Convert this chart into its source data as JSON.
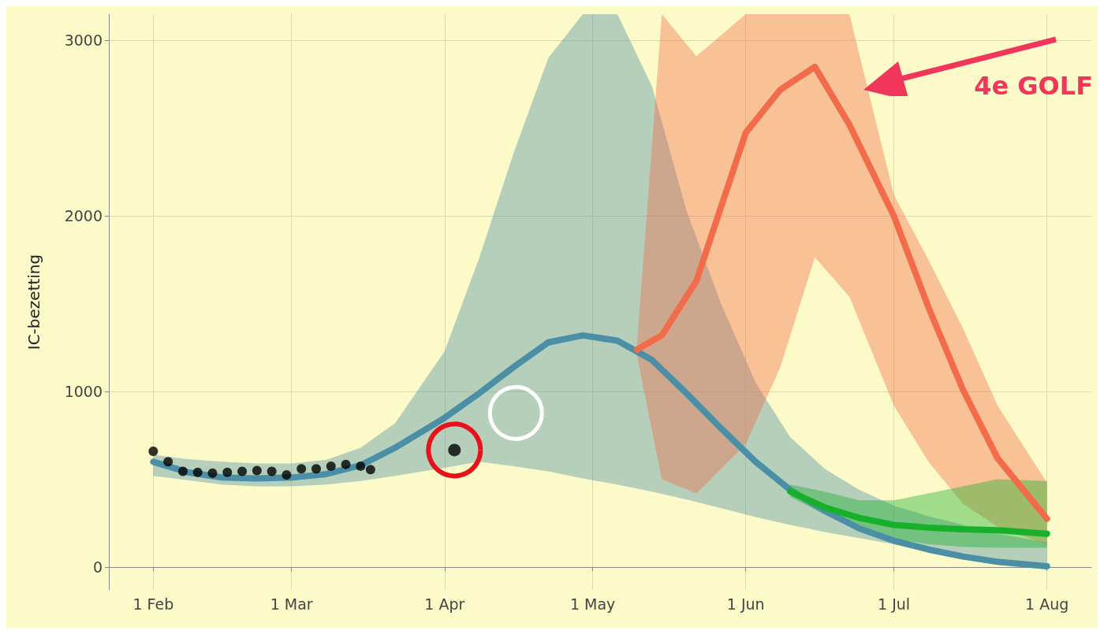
{
  "chart_data": {
    "type": "line",
    "ylabel": "IC-bezetting",
    "xlim": [
      "--01-23",
      "--08-10"
    ],
    "ylim": [
      -130,
      3150
    ],
    "xticks": [
      {
        "value": "--02-01",
        "label": "1 Feb"
      },
      {
        "value": "--03-01",
        "label": "1 Mar"
      },
      {
        "value": "--04-01",
        "label": "1 Apr"
      },
      {
        "value": "--05-01",
        "label": "1 May"
      },
      {
        "value": "--06-01",
        "label": "1 Jun"
      },
      {
        "value": "--07-01",
        "label": "1 Jul"
      },
      {
        "value": "--08-01",
        "label": "1 Aug"
      }
    ],
    "yticks": [
      0,
      1000,
      2000,
      3000
    ],
    "grid": true,
    "series": [
      {
        "color": "#4b8fa6",
        "x": [
          "--02-01",
          "--02-08",
          "--02-15",
          "--02-22",
          "--03-01",
          "--03-08",
          "--03-15",
          "--03-22",
          "--04-01",
          "--04-08",
          "--04-15",
          "--04-22",
          "--04-29",
          "--05-06",
          "--05-13",
          "--05-20",
          "--05-27",
          "--06-03",
          "--06-10",
          "--06-17",
          "--06-24",
          "--07-01",
          "--07-08",
          "--07-15",
          "--07-22",
          "--08-01"
        ],
        "values": [
          600,
          540,
          510,
          505,
          510,
          530,
          580,
          680,
          850,
          990,
          1140,
          1280,
          1320,
          1290,
          1180,
          990,
          790,
          600,
          440,
          320,
          220,
          150,
          100,
          60,
          30,
          5
        ],
        "lower": [
          520,
          495,
          470,
          460,
          460,
          470,
          490,
          520,
          565,
          600,
          575,
          545,
          505,
          470,
          430,
          385,
          335,
          285,
          240,
          200,
          165,
          130,
          100,
          70,
          45,
          20
        ],
        "upper": [
          640,
          615,
          600,
          590,
          590,
          610,
          680,
          820,
          1230,
          1760,
          2360,
          2900,
          3150,
          3150,
          2740,
          2030,
          1500,
          1050,
          740,
          560,
          440,
          350,
          290,
          240,
          190,
          140
        ]
      },
      {
        "color": "#f26b4a",
        "x": [
          "--05-10",
          "--05-15",
          "--05-22",
          "--06-01",
          "--06-08",
          "--06-15",
          "--06-22",
          "--07-01",
          "--07-08",
          "--07-15",
          "--07-22",
          "--08-01"
        ],
        "values": [
          1240,
          1320,
          1630,
          2475,
          2720,
          2850,
          2520,
          2000,
          1480,
          1010,
          620,
          275
        ],
        "lower": [
          1200,
          500,
          420,
          700,
          1140,
          1765,
          1540,
          920,
          600,
          360,
          230,
          130
        ],
        "upper": [
          1280,
          3150,
          2910,
          3150,
          3150,
          3150,
          3150,
          2120,
          1750,
          1360,
          920,
          480
        ]
      },
      {
        "color": "#17b02a",
        "x": [
          "--06-10",
          "--06-17",
          "--06-24",
          "--07-01",
          "--07-08",
          "--07-15",
          "--07-22",
          "--08-01"
        ],
        "values": [
          430,
          340,
          280,
          240,
          225,
          215,
          210,
          190
        ],
        "lower": [
          400,
          300,
          220,
          160,
          130,
          115,
          110,
          110
        ],
        "upper": [
          470,
          430,
          380,
          380,
          420,
          460,
          500,
          490
        ]
      },
      {
        "type": "scatter",
        "marker": "circle",
        "color": "#000000",
        "x": [
          "--02-01",
          "--02-04",
          "--02-07",
          "--02-10",
          "--02-13",
          "--02-16",
          "--02-19",
          "--02-22",
          "--02-25",
          "--02-28",
          "--03-03",
          "--03-06",
          "--03-09",
          "--03-12",
          "--03-15",
          "--03-17"
        ],
        "values": [
          660,
          600,
          545,
          540,
          535,
          540,
          545,
          550,
          545,
          525,
          560,
          560,
          575,
          585,
          575,
          555
        ]
      },
      {
        "type": "scatter",
        "marker": "circle",
        "color": "#000000",
        "x": [
          "--04-03"
        ],
        "values": [
          667
        ]
      }
    ],
    "annotations": [
      "4e GOLF"
    ]
  }
}
